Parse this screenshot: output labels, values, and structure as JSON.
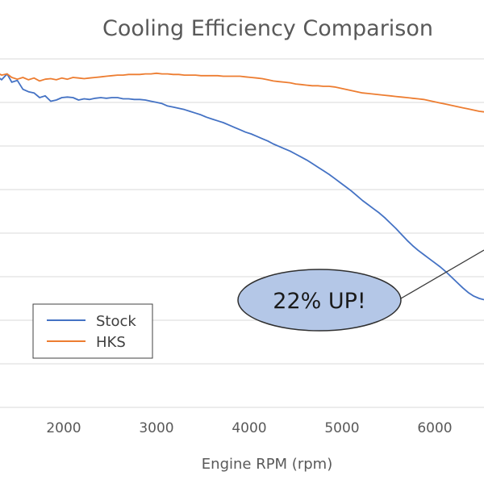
{
  "chart_data": {
    "type": "line",
    "title": "Cooling Efficiency Comparison",
    "xlabel": "Engine RPM (rpm)",
    "ylabel": "",
    "x_ticks": [
      2000,
      3000,
      4000,
      5000,
      6000
    ],
    "xlim": [
      1280,
      6530
    ],
    "grid": true,
    "legend_position": "bottom-left",
    "series": [
      {
        "name": "Stock",
        "color": "#4472C4",
        "x": [
          1280,
          1330,
          1390,
          1440,
          1500,
          1560,
          1620,
          1680,
          1740,
          1800,
          1860,
          1920,
          1980,
          2040,
          2100,
          2160,
          2220,
          2280,
          2340,
          2400,
          2460,
          2520,
          2580,
          2640,
          2700,
          2760,
          2820,
          2880,
          2940,
          3000,
          3060,
          3120,
          3180,
          3240,
          3300,
          3360,
          3420,
          3480,
          3540,
          3600,
          3660,
          3720,
          3780,
          3840,
          3900,
          3960,
          4020,
          4080,
          4140,
          4200,
          4260,
          4320,
          4380,
          4440,
          4500,
          4560,
          4620,
          4680,
          4740,
          4800,
          4860,
          4920,
          4980,
          5040,
          5100,
          5160,
          5220,
          5280,
          5340,
          5400,
          5460,
          5520,
          5580,
          5640,
          5700,
          5760,
          5820,
          5880,
          5940,
          6000,
          6060,
          6120,
          6180,
          6240,
          6300,
          6360,
          6420,
          6480,
          6530
        ],
        "y": [
          97.2,
          96.6,
          97.6,
          96.2,
          96.5,
          95.0,
          94.6,
          94.4,
          93.6,
          93.9,
          93.0,
          93.2,
          93.6,
          93.7,
          93.6,
          93.2,
          93.4,
          93.3,
          93.5,
          93.6,
          93.5,
          93.6,
          93.6,
          93.4,
          93.4,
          93.3,
          93.3,
          93.2,
          93.0,
          92.8,
          92.6,
          92.2,
          92.0,
          91.8,
          91.6,
          91.3,
          91.0,
          90.7,
          90.3,
          90.0,
          89.7,
          89.4,
          89.0,
          88.6,
          88.2,
          87.8,
          87.5,
          87.1,
          86.7,
          86.3,
          85.8,
          85.4,
          85.0,
          84.6,
          84.1,
          83.6,
          83.1,
          82.5,
          81.9,
          81.3,
          80.7,
          80.0,
          79.3,
          78.6,
          77.9,
          77.1,
          76.3,
          75.6,
          74.9,
          74.2,
          73.4,
          72.5,
          71.6,
          70.6,
          69.6,
          68.7,
          67.9,
          67.2,
          66.5,
          65.8,
          65.1,
          64.3,
          63.4,
          62.5,
          61.6,
          60.8,
          60.2,
          59.8,
          59.6
        ]
      },
      {
        "name": "HKS",
        "color": "#ED7D31",
        "x": [
          1280,
          1330,
          1390,
          1440,
          1500,
          1560,
          1620,
          1680,
          1740,
          1800,
          1860,
          1920,
          1980,
          2040,
          2100,
          2160,
          2220,
          2280,
          2340,
          2400,
          2460,
          2520,
          2580,
          2640,
          2700,
          2760,
          2820,
          2880,
          2940,
          3000,
          3060,
          3120,
          3180,
          3240,
          3300,
          3360,
          3420,
          3480,
          3540,
          3600,
          3660,
          3720,
          3780,
          3840,
          3900,
          3960,
          4020,
          4080,
          4140,
          4200,
          4260,
          4320,
          4380,
          4440,
          4500,
          4560,
          4620,
          4680,
          4740,
          4800,
          4860,
          4920,
          4980,
          5040,
          5100,
          5160,
          5220,
          5280,
          5340,
          5400,
          5460,
          5520,
          5580,
          5640,
          5700,
          5760,
          5820,
          5880,
          5940,
          6000,
          6060,
          6120,
          6180,
          6240,
          6300,
          6360,
          6420,
          6480,
          6530
        ],
        "y": [
          97.8,
          97.4,
          97.6,
          97.0,
          96.7,
          97.0,
          96.6,
          96.9,
          96.4,
          96.7,
          96.8,
          96.6,
          96.9,
          96.7,
          97.0,
          96.9,
          96.8,
          96.9,
          97.0,
          97.1,
          97.2,
          97.3,
          97.4,
          97.4,
          97.5,
          97.5,
          97.5,
          97.6,
          97.6,
          97.7,
          97.6,
          97.6,
          97.5,
          97.5,
          97.4,
          97.4,
          97.4,
          97.3,
          97.3,
          97.3,
          97.3,
          97.2,
          97.2,
          97.2,
          97.2,
          97.1,
          97.0,
          96.9,
          96.8,
          96.6,
          96.4,
          96.3,
          96.2,
          96.1,
          95.9,
          95.8,
          95.7,
          95.6,
          95.6,
          95.5,
          95.5,
          95.4,
          95.2,
          95.0,
          94.8,
          94.6,
          94.4,
          94.3,
          94.2,
          94.1,
          94.0,
          93.9,
          93.8,
          93.7,
          93.6,
          93.5,
          93.4,
          93.3,
          93.1,
          92.9,
          92.7,
          92.5,
          92.3,
          92.1,
          91.9,
          91.7,
          91.5,
          91.3,
          91.2
        ]
      }
    ],
    "annotation": {
      "text": "22% UP!",
      "fill": "#B4C7E7",
      "stroke": "#2F2F2F"
    },
    "colors": {
      "grid": "#D9D9D9",
      "text": "#595959"
    }
  }
}
